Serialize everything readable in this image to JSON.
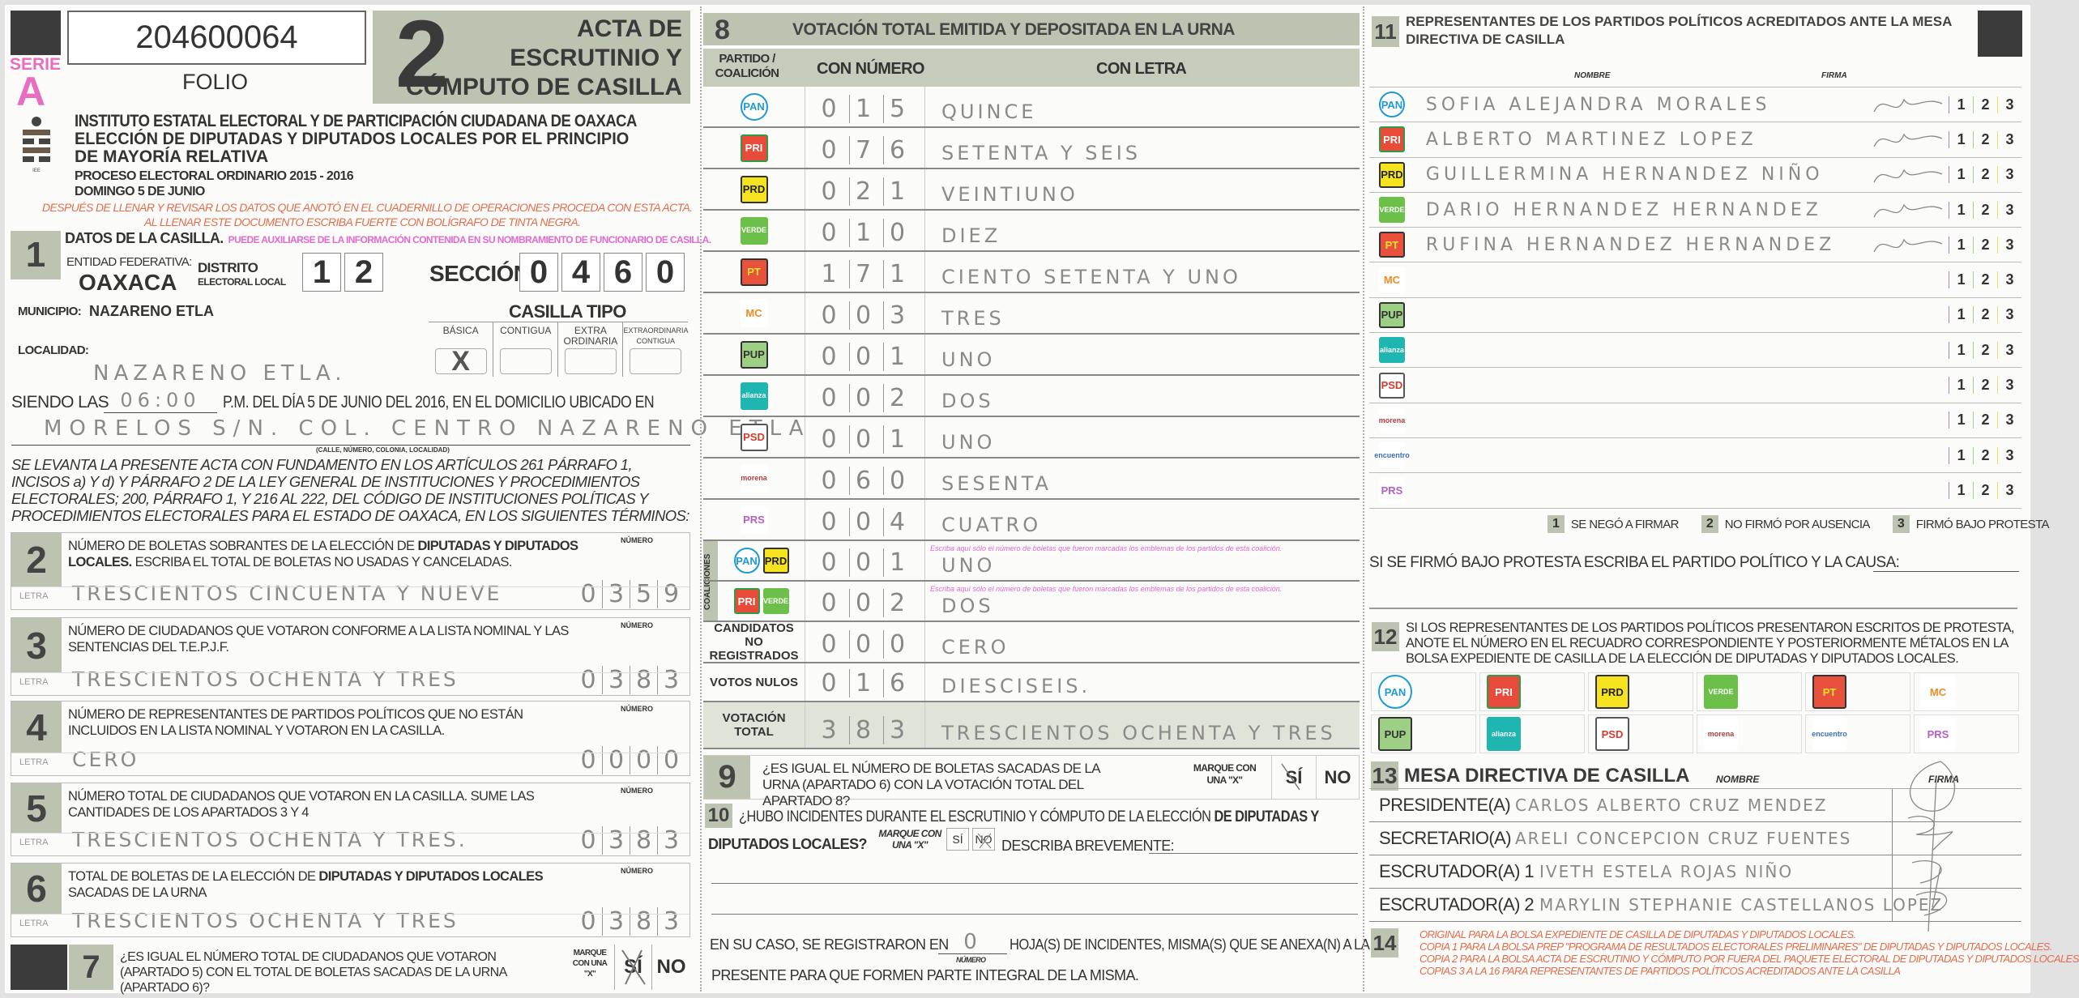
{
  "header": {
    "serie_label": "SERIE",
    "serie_value": "A",
    "folio_number": "204600064",
    "folio_label": "FOLIO",
    "acta_number": "2",
    "acta_title": [
      "ACTA DE",
      "ESCRUTINIO Y",
      "CÓMPUTO DE CASILLA"
    ],
    "logo_text": "INSTITUTO ESTATAL ELECTORAL",
    "institute": "INSTITUTO ESTATAL ELECTORAL Y DE PARTICIPACIÓN CIUDADANA DE OAXACA",
    "election_1": "ELECCIÓN DE DIPUTADAS Y DIPUTADOS LOCALES POR EL PRINCIPIO",
    "election_2": "DE MAYORÍA RELATIVA",
    "process": "PROCESO ELECTORAL ORDINARIO 2015 - 2016",
    "date": "DOMINGO 5 DE JUNIO",
    "instruction_1": "DESPUÉS DE LLENAR Y REVISAR LOS DATOS QUE ANOTÓ EN EL CUADERNILLO DE OPERACIONES PROCEDA CON ESTA ACTA.",
    "instruction_2": "AL LLENAR ESTE DOCUMENTO ESCRIBA FUERTE CON BOLÍGRAFO DE TINTA NEGRA."
  },
  "section1": {
    "number": "1",
    "title": "DATOS DE LA CASILLA.",
    "hint": "PUEDE AUXILIARSE DE LA INFORMACIÓN CONTENIDA EN SU NOMBRAMIENTO DE FUNCIONARIO DE CASILLA.",
    "entidad_label": "ENTIDAD FEDERATIVA:",
    "entidad_value": "OAXACA",
    "distrito_label": "DISTRITO",
    "distrito_sublabel": "ELECTORAL LOCAL",
    "distrito_digits": [
      "1",
      "2"
    ],
    "seccion_label": "SECCIÓN:",
    "seccion_digits": [
      "0",
      "4",
      "6",
      "0"
    ],
    "municipio_label": "MUNICIPIO:",
    "municipio_value": "NAZARENO ETLA",
    "casilla_tipo_label": "CASILLA TIPO",
    "casilla_tipos": [
      {
        "label": "BÁSICA",
        "mark": "X"
      },
      {
        "label": "CONTIGUA",
        "mark": ""
      },
      {
        "label": "EXTRA ORDINARIA",
        "mark": ""
      },
      {
        "label": "EXTRAORDINARIA CONTIGUA",
        "mark": ""
      }
    ],
    "localidad_label": "LOCALIDAD:",
    "localidad_value": "NAZARENO ETLA.",
    "siendo_las_label": "SIENDO LAS",
    "siendo_las_value": "06:00",
    "siendo_las_rest": "P.M. DEL DÍA 5 DE JUNIO DEL 2016, EN EL DOMICILIO UBICADO EN",
    "domicilio_value": "MORELOS S/N. COL. CENTRO NAZARENO ETLA",
    "domicilio_caption": "(CALLE, NÚMERO, COLONIA, LOCALIDAD)",
    "legal_text": "SE LEVANTA LA PRESENTE ACTA CON FUNDAMENTO EN LOS ARTÍCULOS 261 PÁRRAFO 1, INCISOS a) Y d) Y PÁRRAFO 2 DE LA LEY GENERAL DE INSTITUCIONES Y PROCEDIMIENTOS ELECTORALES; 200, PÁRRAFO 1, Y 216 AL 222, DEL CÓDIGO DE INSTITUCIONES POLÍTICAS Y PROCEDIMIENTOS ELECTORALES PARA EL ESTADO DE OAXACA, EN LOS SIGUIENTES TÉRMINOS:"
  },
  "count_sections": [
    {
      "number": "2",
      "pre": "NÚMERO DE BOLETAS SOBRANTES DE LA ELECCIÓN DE ",
      "bold": "DIPUTADAS Y DIPUTADOS LOCALES.",
      "post": " ESCRIBA EL TOTAL DE BOLETAS NO USADAS Y CANCELADAS.",
      "numero_label": "NÚMERO",
      "letra_label": "LETRA",
      "letra": "TRESCIENTOS CINCUENTA Y NUEVE",
      "digits": [
        "0",
        "3",
        "5",
        "9"
      ]
    },
    {
      "number": "3",
      "pre": "NÚMERO DE CIUDADANOS QUE VOTARON CONFORME A LA LISTA NOMINAL Y LAS SENTENCIAS DEL T.E.P.J.F.",
      "bold": "",
      "post": "",
      "numero_label": "NÚMERO",
      "letra_label": "LETRA",
      "letra": "TRESCIENTOS OCHENTA Y TRES",
      "digits": [
        "0",
        "3",
        "8",
        "3"
      ]
    },
    {
      "number": "4",
      "pre": "NÚMERO DE REPRESENTANTES DE PARTIDOS POLÍTICOS QUE NO ESTÁN INCLUIDOS EN LA LISTA NOMINAL Y VOTARON EN LA CASILLA.",
      "bold": "",
      "post": "",
      "numero_label": "NÚMERO",
      "letra_label": "LETRA",
      "letra": "CERO",
      "digits": [
        "0",
        "0",
        "0",
        "0"
      ]
    },
    {
      "number": "5",
      "pre": "NÚMERO TOTAL DE CIUDADANOS QUE VOTARON EN LA CASILLA. SUME LAS CANTIDADES DE LOS APARTADOS 3 Y 4",
      "bold": "",
      "post": "",
      "numero_label": "NÚMERO",
      "letra_label": "LETRA",
      "letra": "TRESCIENTOS OCHENTA Y TRES.",
      "digits": [
        "0",
        "3",
        "8",
        "3"
      ]
    },
    {
      "number": "6",
      "pre": "TOTAL DE BOLETAS DE LA ELECCIÓN DE ",
      "bold": "DIPUTADAS Y DIPUTADOS LOCALES",
      "post": " SACADAS DE LA URNA",
      "numero_label": "NÚMERO",
      "letra_label": "LETRA",
      "letra": "TRESCIENTOS OCHENTA Y TRES",
      "digits": [
        "0",
        "3",
        "8",
        "3"
      ]
    }
  ],
  "section7": {
    "number": "7",
    "question": "¿ES IGUAL EL NÚMERO TOTAL DE CIUDADANOS QUE VOTARON (APARTADO 5) CON EL TOTAL DE BOLETAS SACADAS DE LA URNA (APARTADO 6)?",
    "marque": "MARQUE CON UNA \"X\"",
    "yes": "SÍ",
    "no": "NO",
    "selected": "SÍ"
  },
  "section8": {
    "number": "8",
    "title": "VOTACIÓN TOTAL EMITIDA Y DEPOSITADA EN LA URNA",
    "col_party": "PARTIDO / COALICIÓN",
    "col_numero": "CON NÚMERO",
    "col_letra": "CON LETRA",
    "coaliciones_label": "COALICIONES",
    "coalition_hint": "Escriba aquí sólo el número de boletas que fueron marcadas los emblemas de los partidos de esta coalición.",
    "rows": [
      {
        "party": "pan",
        "digits": [
          "0",
          "1",
          "5"
        ],
        "letra": "QUINCE"
      },
      {
        "party": "pri",
        "digits": [
          "0",
          "7",
          "6"
        ],
        "letra": "SETENTA Y SEIS"
      },
      {
        "party": "prd",
        "digits": [
          "0",
          "2",
          "1"
        ],
        "letra": "VEINTIUNO"
      },
      {
        "party": "verde",
        "digits": [
          "0",
          "1",
          "0"
        ],
        "letra": "DIEZ"
      },
      {
        "party": "pt",
        "digits": [
          "1",
          "7",
          "1"
        ],
        "letra": "CIENTO SETENTA Y UNO"
      },
      {
        "party": "mc",
        "digits": [
          "0",
          "0",
          "3"
        ],
        "letra": "TRES"
      },
      {
        "party": "pup",
        "digits": [
          "0",
          "0",
          "1"
        ],
        "letra": "UNO"
      },
      {
        "party": "na",
        "digits": [
          "0",
          "0",
          "2"
        ],
        "letra": "DOS"
      },
      {
        "party": "psd",
        "digits": [
          "0",
          "0",
          "1"
        ],
        "letra": "UNO"
      },
      {
        "party": "morena",
        "digits": [
          "0",
          "6",
          "0"
        ],
        "letra": "SESENTA"
      },
      {
        "party": "prs",
        "digits": [
          "0",
          "0",
          "4"
        ],
        "letra": "CUATRO"
      }
    ],
    "coalitions": [
      {
        "parties": [
          "pan",
          "prd"
        ],
        "digits": [
          "0",
          "0",
          "1"
        ],
        "letra": "UNO"
      },
      {
        "parties": [
          "pri",
          "verde"
        ],
        "digits": [
          "0",
          "0",
          "2"
        ],
        "letra": "DOS"
      }
    ],
    "no_registrados_label": "CANDIDATOS NO REGISTRADOS",
    "no_registrados": {
      "digits": [
        "0",
        "0",
        "0"
      ],
      "letra": "CERO"
    },
    "nulos_label": "VOTOS NULOS",
    "nulos": {
      "digits": [
        "0",
        "1",
        "6"
      ],
      "letra": "DIESCISEIS."
    },
    "total_label": "VOTACIÓN TOTAL",
    "total": {
      "digits": [
        "3",
        "8",
        "3"
      ],
      "letra": "TRESCIENTOS OCHENTA Y TRES"
    }
  },
  "section9": {
    "number": "9",
    "question": "¿ES IGUAL EL NÚMERO DE BOLETAS SACADAS DE LA URNA (APARTADO 6) CON LA VOTACIÓN TOTAL DEL APARTADO 8?",
    "marque": "MARQUE CON UNA \"X\"",
    "yes": "SÍ",
    "no": "NO",
    "selected": "SÍ"
  },
  "section10": {
    "number": "10",
    "question_pre": "¿HUBO INCIDENTES DURANTE EL ESCRUTINIO Y CÓMPUTO DE LA ELECCIÓN ",
    "question_bold": "DE DIPUTADAS Y",
    "question_line2": "DIPUTADOS LOCALES?",
    "marque": "MARQUE CON UNA \"X\"",
    "yes": "SÍ",
    "no": "NO",
    "selected": "NO",
    "describe_label": "DESCRIBA BREVEMENTE:",
    "hojas_pre": "EN SU CASO, SE REGISTRARON EN",
    "hojas_value": "0",
    "hojas_caption": "NÚMERO",
    "hojas_post": "HOJA(S) DE INCIDENTES, MISMA(S) QUE SE ANEXA(N) A LA",
    "hojas_line2": "PRESENTE PARA QUE FORMEN PARTE INTEGRAL DE LA MISMA."
  },
  "section11": {
    "number": "11",
    "title": "REPRESENTANTES DE LOS PARTIDOS POLÍTICOS ACREDITADOS ANTE LA MESA DIRECTIVA DE CASILLA",
    "col_nombre": "NOMBRE",
    "col_firma": "FIRMA",
    "options": [
      "1",
      "2",
      "3"
    ],
    "rows": [
      {
        "party": "pan",
        "name": "SOFIA ALEJANDRA MORALES",
        "signed": true
      },
      {
        "party": "pri",
        "name": "ALBERTO MARTINEZ LOPEZ",
        "signed": true
      },
      {
        "party": "prd",
        "name": "GUILLERMINA HERNANDEZ NIÑO",
        "signed": true
      },
      {
        "party": "verde",
        "name": "DARIO HERNANDEZ HERNANDEZ",
        "signed": true
      },
      {
        "party": "pt",
        "name": "RUFINA HERNANDEZ HERNANDEZ",
        "signed": true
      },
      {
        "party": "mc",
        "name": "",
        "signed": false
      },
      {
        "party": "pup",
        "name": "",
        "signed": false
      },
      {
        "party": "na",
        "name": "",
        "signed": false
      },
      {
        "party": "psd",
        "name": "",
        "signed": false
      },
      {
        "party": "morena",
        "name": "",
        "signed": false
      },
      {
        "party": "pes",
        "name": "",
        "signed": false
      },
      {
        "party": "prs",
        "name": "",
        "signed": false
      }
    ],
    "legend": [
      {
        "num": "1",
        "label": "SE NEGÓ A FIRMAR"
      },
      {
        "num": "2",
        "label": "NO FIRMÓ POR AUSENCIA"
      },
      {
        "num": "3",
        "label": "FIRMÓ BAJO PROTESTA"
      }
    ],
    "protest_label": "SI SE FIRMÓ BAJO PROTESTA ESCRIBA EL PARTIDO POLÍTICO Y LA CAUSA:"
  },
  "section12": {
    "number": "12",
    "text": "SI LOS REPRESENTANTES DE LOS PARTIDOS POLÍTICOS PRESENTARON ESCRITOS DE PROTESTA, ANOTE EL NÚMERO EN EL RECUADRO CORRESPONDIENTE Y POSTERIORMENTE MÉTALOS EN LA BOLSA EXPEDIENTE DE CASILLA DE LA ELECCIÓN DE DIPUTADAS Y DIPUTADOS LOCALES.",
    "parties": [
      "pan",
      "pri",
      "prd",
      "verde",
      "pt",
      "mc",
      "pup",
      "na",
      "psd",
      "morena",
      "pes",
      "prs"
    ]
  },
  "section13": {
    "number": "13",
    "title": "MESA DIRECTIVA DE CASILLA",
    "col_nombre": "NOMBRE",
    "col_firma": "FIRMA",
    "rows": [
      {
        "role": "PRESIDENTE(A)",
        "name": "CARLOS ALBERTO CRUZ MENDEZ"
      },
      {
        "role": "SECRETARIO(A)",
        "name": "ARELI CONCEPCION CRUZ FUENTES"
      },
      {
        "role": "ESCRUTADOR(A) 1",
        "name": "IVETH ESTELA ROJAS NIÑO"
      },
      {
        "role": "ESCRUTADOR(A) 2",
        "name": "MARYLIN STEPHANIE CASTELLANOS LOPEZ"
      }
    ]
  },
  "section14": {
    "number": "14",
    "lines": [
      "ORIGINAL PARA LA BOLSA EXPEDIENTE DE CASILLA DE DIPUTADAS Y DIPUTADOS LOCALES.",
      "COPIA 1 PARA LA BOLSA PREP \"PROGRAMA DE RESULTADOS ELECTORALES PRELIMINARES\" DE DIPUTADAS Y DIPUTADOS LOCALES.",
      "COPIA 2 PARA LA BOLSA ACTA DE ESCRUTINIO Y CÓMPUTO POR FUERA DEL PAQUETE ELECTORAL DE DIPUTADAS Y DIPUTADOS LOCALES",
      "COPIAS 3 A LA 16 PARA REPRESENTANTES DE PARTIDOS POLÍTICOS ACREDITADOS ANTE LA CASILLA"
    ]
  },
  "parties": {
    "pan": {
      "label": "PAN",
      "bg": "#ffffff",
      "fg": "#1d9ad6",
      "border": "#1d9ad6"
    },
    "pri": {
      "label": "PRI",
      "bg": "#e84b3a",
      "fg": "#ffffff",
      "border": "#2e9c47"
    },
    "prd": {
      "label": "PRD",
      "bg": "#f6e320",
      "fg": "#222222",
      "border": "#333333"
    },
    "verde": {
      "label": "VERDE",
      "bg": "#6cc04a",
      "fg": "#ffffff",
      "border": "#6cc04a"
    },
    "pt": {
      "label": "PT",
      "bg": "#e8523d",
      "fg": "#f8e030",
      "border": "#333333"
    },
    "mc": {
      "label": "MC",
      "bg": "#ffffff",
      "fg": "#f08a24",
      "border": "#ffffff"
    },
    "pup": {
      "label": "PUP",
      "bg": "#9dcf84",
      "fg": "#333333",
      "border": "#333333"
    },
    "na": {
      "label": "alianza",
      "bg": "#1fb5b0",
      "fg": "#ffffff",
      "border": "#1fb5b0"
    },
    "psd": {
      "label": "PSD",
      "bg": "#ffffff",
      "fg": "#d83a2a",
      "border": "#555555"
    },
    "morena": {
      "label": "morena",
      "bg": "#ffffff",
      "fg": "#b33b3b",
      "border": "#ffffff"
    },
    "pes": {
      "label": "encuentro",
      "bg": "#ffffff",
      "fg": "#3a6fb5",
      "border": "#ffffff"
    },
    "prs": {
      "label": "PRS",
      "bg": "#ffffff",
      "fg": "#b65fc8",
      "border": "#ffffff"
    }
  },
  "colors": {
    "accent_green": "#bcc3b1",
    "serie_pink": "#e86cbf",
    "instruction_red": "#e56c4c",
    "hint_pink": "#e26ad0"
  }
}
